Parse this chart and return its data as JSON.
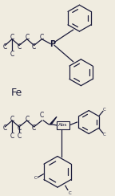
{
  "bg_color": "#f0ece0",
  "line_color": "#1a1a3a",
  "text_color": "#1a1a3a",
  "fe_label": "Fe",
  "phos_label": "P",
  "abs_label": "Abs",
  "fig_width": 1.44,
  "fig_height": 2.44,
  "dpi": 100
}
